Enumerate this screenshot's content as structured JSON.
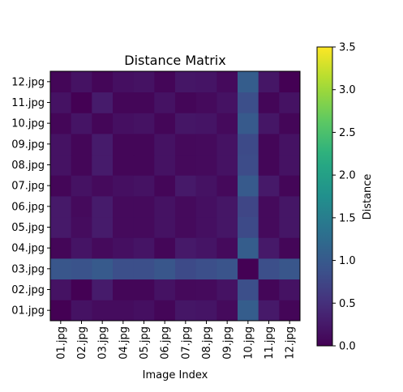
{
  "chart_data": {
    "type": "heatmap",
    "title": "Distance Matrix",
    "xlabel": "Image Index",
    "ylabel": "",
    "colorbar_label": "Distance",
    "colormap": "viridis",
    "vmin": 0.0,
    "vmax": 3.5,
    "colorbar_ticks": [
      "0.0",
      "0.5",
      "1.0",
      "1.5",
      "2.0",
      "2.5",
      "3.0",
      "3.5"
    ],
    "x_categories": [
      "01.jpg",
      "02.jpg",
      "03.jpg",
      "04.jpg",
      "05.jpg",
      "06.jpg",
      "07.jpg",
      "08.jpg",
      "09.jpg",
      "10.jpg",
      "11.jpg",
      "12.jpg"
    ],
    "y_categories": [
      "01.jpg",
      "02.jpg",
      "03.jpg",
      "04.jpg",
      "05.jpg",
      "06.jpg",
      "07.jpg",
      "08.jpg",
      "09.jpg",
      "10.jpg",
      "11.jpg",
      "12.jpg"
    ],
    "y_label_order": "bottom-to-top",
    "values": [
      [
        0.0,
        0.18,
        0.12,
        0.12,
        0.15,
        0.05,
        0.22,
        0.2,
        0.1,
        1.05,
        0.25,
        0.05
      ],
      [
        0.18,
        0.0,
        0.28,
        0.05,
        0.05,
        0.18,
        0.08,
        0.1,
        0.18,
        0.85,
        0.05,
        0.18
      ],
      [
        0.95,
        0.9,
        1.0,
        0.85,
        0.85,
        0.95,
        0.8,
        0.85,
        0.92,
        0.0,
        0.85,
        0.95
      ],
      [
        0.05,
        0.2,
        0.1,
        0.15,
        0.2,
        0.05,
        0.25,
        0.2,
        0.1,
        1.05,
        0.25,
        0.05
      ],
      [
        0.25,
        0.12,
        0.28,
        0.1,
        0.1,
        0.18,
        0.1,
        0.15,
        0.22,
        0.8,
        0.1,
        0.22
      ],
      [
        0.25,
        0.1,
        0.28,
        0.1,
        0.1,
        0.18,
        0.1,
        0.15,
        0.22,
        0.75,
        0.1,
        0.22
      ],
      [
        0.05,
        0.18,
        0.1,
        0.15,
        0.18,
        0.05,
        0.25,
        0.18,
        0.08,
        1.0,
        0.25,
        0.05
      ],
      [
        0.18,
        0.05,
        0.28,
        0.05,
        0.05,
        0.18,
        0.08,
        0.1,
        0.18,
        0.82,
        0.05,
        0.18
      ],
      [
        0.18,
        0.05,
        0.28,
        0.05,
        0.05,
        0.18,
        0.08,
        0.1,
        0.18,
        0.8,
        0.05,
        0.18
      ],
      [
        0.05,
        0.2,
        0.05,
        0.15,
        0.18,
        0.05,
        0.22,
        0.2,
        0.1,
        1.0,
        0.22,
        0.05
      ],
      [
        0.18,
        0.0,
        0.28,
        0.05,
        0.05,
        0.18,
        0.05,
        0.1,
        0.18,
        0.85,
        0.05,
        0.18
      ],
      [
        0.05,
        0.18,
        0.05,
        0.15,
        0.18,
        0.05,
        0.22,
        0.2,
        0.1,
        1.05,
        0.22,
        0.0
      ]
    ]
  }
}
